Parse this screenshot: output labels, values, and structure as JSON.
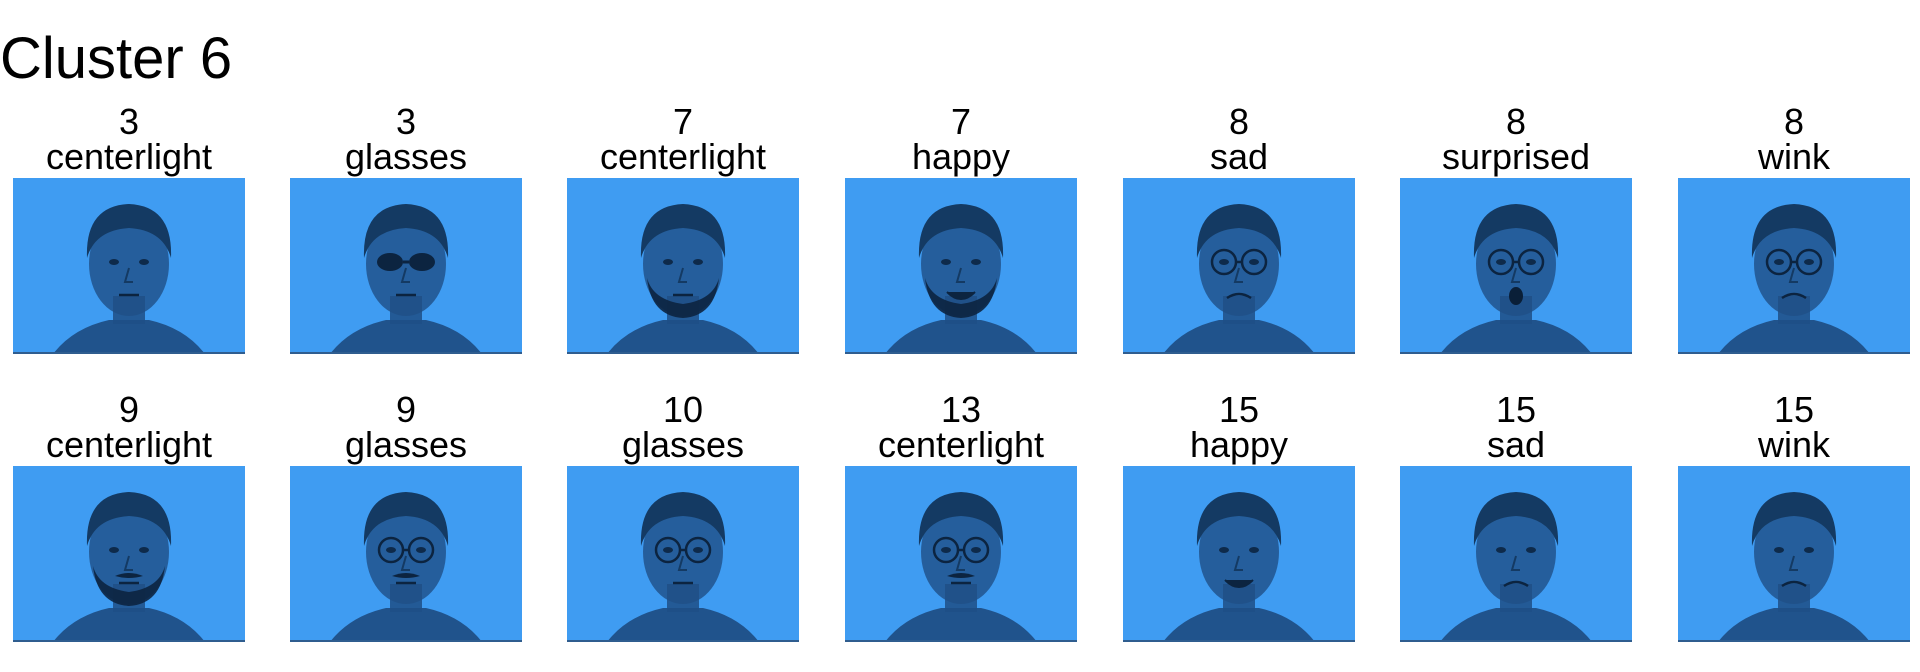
{
  "figure": {
    "title": "Cluster 6",
    "tint_color": "#3f9cf2",
    "face_color": "#1f4f86",
    "faces": [
      {
        "subject": "3",
        "condition": "centerlight",
        "glasses": "none",
        "mouth": "neutral",
        "beard": false,
        "mustache": false
      },
      {
        "subject": "3",
        "condition": "glasses",
        "glasses": "sunglasses",
        "mouth": "neutral",
        "beard": false,
        "mustache": false
      },
      {
        "subject": "7",
        "condition": "centerlight",
        "glasses": "none",
        "mouth": "neutral",
        "beard": true,
        "mustache": false
      },
      {
        "subject": "7",
        "condition": "happy",
        "glasses": "none",
        "mouth": "smile",
        "beard": true,
        "mustache": false
      },
      {
        "subject": "8",
        "condition": "sad",
        "glasses": "round",
        "mouth": "sad",
        "beard": false,
        "mustache": false
      },
      {
        "subject": "8",
        "condition": "surprised",
        "glasses": "round",
        "mouth": "open",
        "beard": false,
        "mustache": false
      },
      {
        "subject": "8",
        "condition": "wink",
        "glasses": "round",
        "mouth": "sad",
        "beard": false,
        "mustache": false
      },
      {
        "subject": "9",
        "condition": "centerlight",
        "glasses": "none",
        "mouth": "neutral",
        "beard": true,
        "mustache": true
      },
      {
        "subject": "9",
        "condition": "glasses",
        "glasses": "round",
        "mouth": "neutral",
        "beard": false,
        "mustache": true
      },
      {
        "subject": "10",
        "condition": "glasses",
        "glasses": "round",
        "mouth": "neutral",
        "beard": false,
        "mustache": false
      },
      {
        "subject": "13",
        "condition": "centerlight",
        "glasses": "round",
        "mouth": "neutral",
        "beard": false,
        "mustache": true
      },
      {
        "subject": "15",
        "condition": "happy",
        "glasses": "none",
        "mouth": "smile",
        "beard": false,
        "mustache": false
      },
      {
        "subject": "15",
        "condition": "sad",
        "glasses": "none",
        "mouth": "sad",
        "beard": false,
        "mustache": false
      },
      {
        "subject": "15",
        "condition": "wink",
        "glasses": "none",
        "mouth": "sad",
        "beard": false,
        "mustache": false
      }
    ]
  }
}
